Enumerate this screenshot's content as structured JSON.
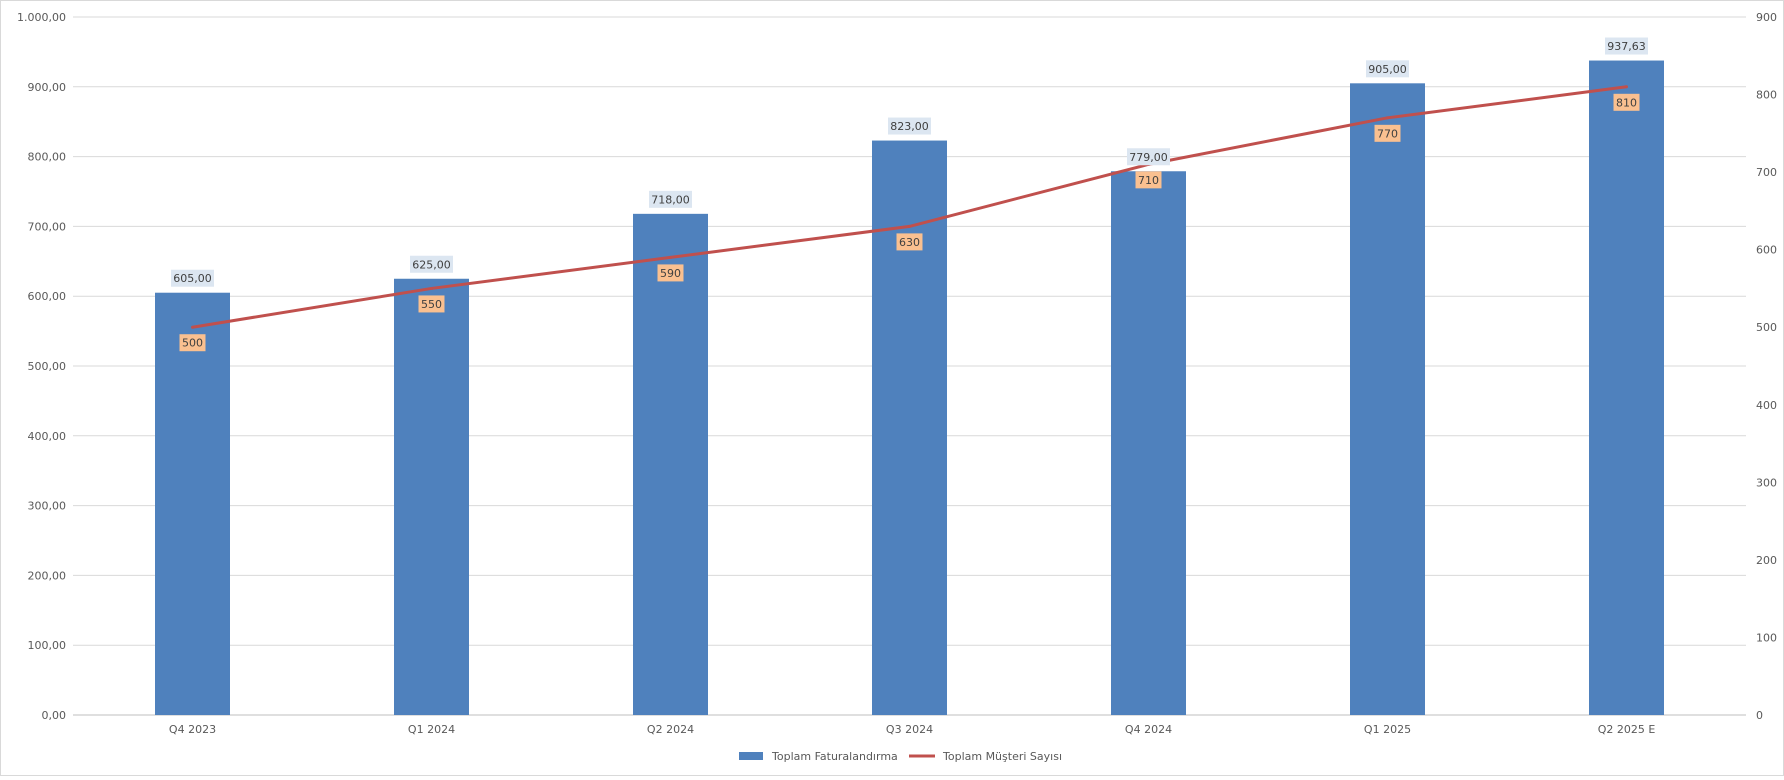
{
  "chart_data": {
    "type": "bar",
    "categories": [
      "Q4 2023",
      "Q1 2024",
      "Q2 2024",
      "Q3 2024",
      "Q4 2024",
      "Q1 2025",
      "Q2 2025 E"
    ],
    "series": [
      {
        "name": "Toplam Faturalandırma",
        "type": "bar",
        "axis": "left",
        "values": [
          605.0,
          625.0,
          718.0,
          823.0,
          779.0,
          905.0,
          937.63
        ],
        "labels": [
          "605,00",
          "625,00",
          "718,00",
          "823,00",
          "779,00",
          "905,00",
          "937,63"
        ],
        "color": "#4f81bd"
      },
      {
        "name": "Toplam Müşteri Sayısı",
        "type": "line",
        "axis": "right",
        "values": [
          500,
          550,
          590,
          630,
          710,
          770,
          810
        ],
        "labels": [
          "500",
          "550",
          "590",
          "630",
          "710",
          "770",
          "810"
        ],
        "color": "#c0504d"
      }
    ],
    "y_left": {
      "range": [
        0,
        1000
      ],
      "ticks": [
        "0,00",
        "100,00",
        "200,00",
        "300,00",
        "400,00",
        "500,00",
        "600,00",
        "700,00",
        "800,00",
        "900,00",
        "1.000,00"
      ]
    },
    "y_right": {
      "range": [
        0,
        900
      ],
      "ticks": [
        "0",
        "100",
        "200",
        "300",
        "400",
        "500",
        "600",
        "700",
        "800",
        "900"
      ]
    },
    "grid": true,
    "legend_position": "bottom",
    "bar_label_bg": "#dce6f1",
    "line_label_bg": "#fac090"
  }
}
